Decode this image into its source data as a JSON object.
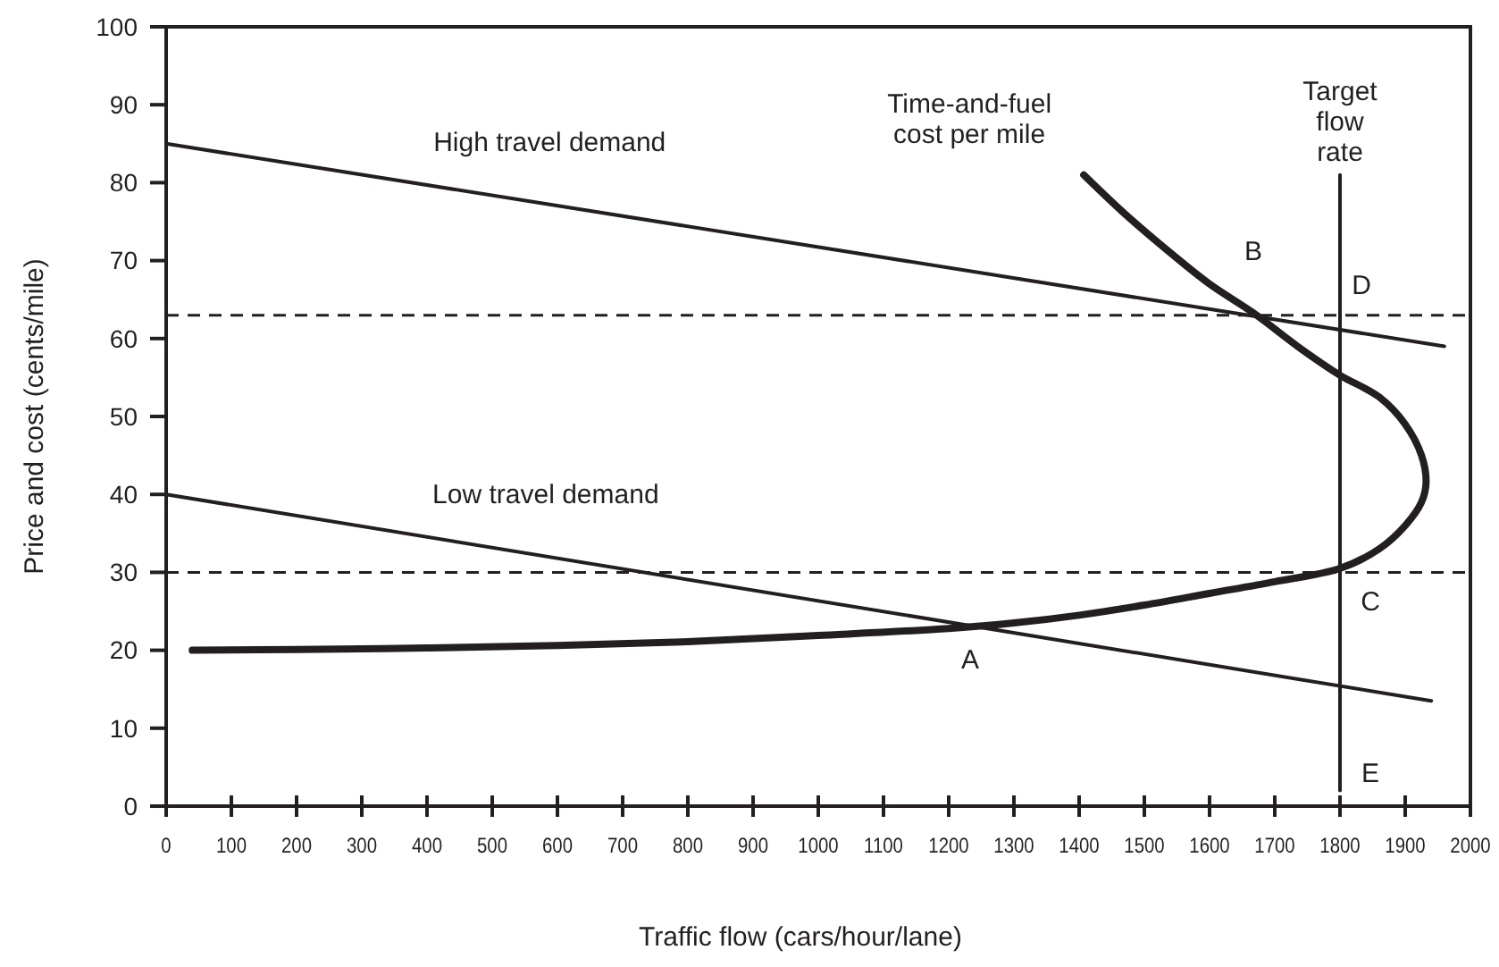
{
  "chart_data": {
    "type": "line",
    "xlabel": "Traffic flow (cars/hour/lane)",
    "ylabel": "Price and cost (cents/mile)",
    "xlim": [
      0,
      2000
    ],
    "xticks": [
      0,
      100,
      200,
      300,
      400,
      500,
      600,
      700,
      800,
      900,
      1000,
      1100,
      1200,
      1300,
      1400,
      1500,
      1600,
      1700,
      1800,
      1900,
      2000
    ],
    "ylim": [
      0,
      100
    ],
    "yticks": [
      0,
      10,
      20,
      30,
      40,
      50,
      60,
      70,
      80,
      90,
      100
    ],
    "grid": false,
    "marker": "none",
    "line_style": "solid",
    "series": [
      {
        "name": "High travel demand",
        "color": "#231f20",
        "x": [
          0,
          1960
        ],
        "values": [
          85,
          59
        ]
      },
      {
        "name": "Low travel demand",
        "color": "#231f20",
        "x": [
          0,
          1940
        ],
        "values": [
          40,
          13.5
        ]
      },
      {
        "name": "Time-and-fuel cost per mile",
        "color": "#231f20",
        "x": [
          40,
          200,
          400,
          600,
          800,
          1000,
          1200,
          1300,
          1400,
          1500,
          1600,
          1700,
          1800,
          1860,
          1900,
          1925,
          1932,
          1925,
          1900,
          1860,
          1800,
          1740,
          1667,
          1600,
          1540,
          1470,
          1407
        ],
        "values": [
          20,
          20.1,
          20.3,
          20.6,
          21.1,
          21.9,
          22.8,
          23.5,
          24.5,
          25.8,
          27.3,
          28.8,
          30.5,
          33,
          36,
          39,
          41.5,
          45,
          49,
          52.5,
          55.3,
          58.7,
          63.3,
          67,
          71,
          76,
          81
        ]
      },
      {
        "name": "Target flow rate",
        "color": "#231f20",
        "x": [
          1800,
          1800
        ],
        "values": [
          2,
          81
        ]
      }
    ],
    "ref_lines": [
      {
        "axis": "y",
        "value": 63,
        "line_style": "dashed"
      },
      {
        "axis": "y",
        "value": 30,
        "line_style": "dashed"
      }
    ],
    "annotations": [
      {
        "text": "A",
        "x": 1233,
        "y": 23
      },
      {
        "text": "B",
        "x": 1667,
        "y": 63.3
      },
      {
        "text": "C",
        "x": 1800,
        "y": 30.5
      },
      {
        "text": "D",
        "x": 1800,
        "y": 61
      },
      {
        "text": "E",
        "x": 1800,
        "y": 2
      }
    ]
  }
}
